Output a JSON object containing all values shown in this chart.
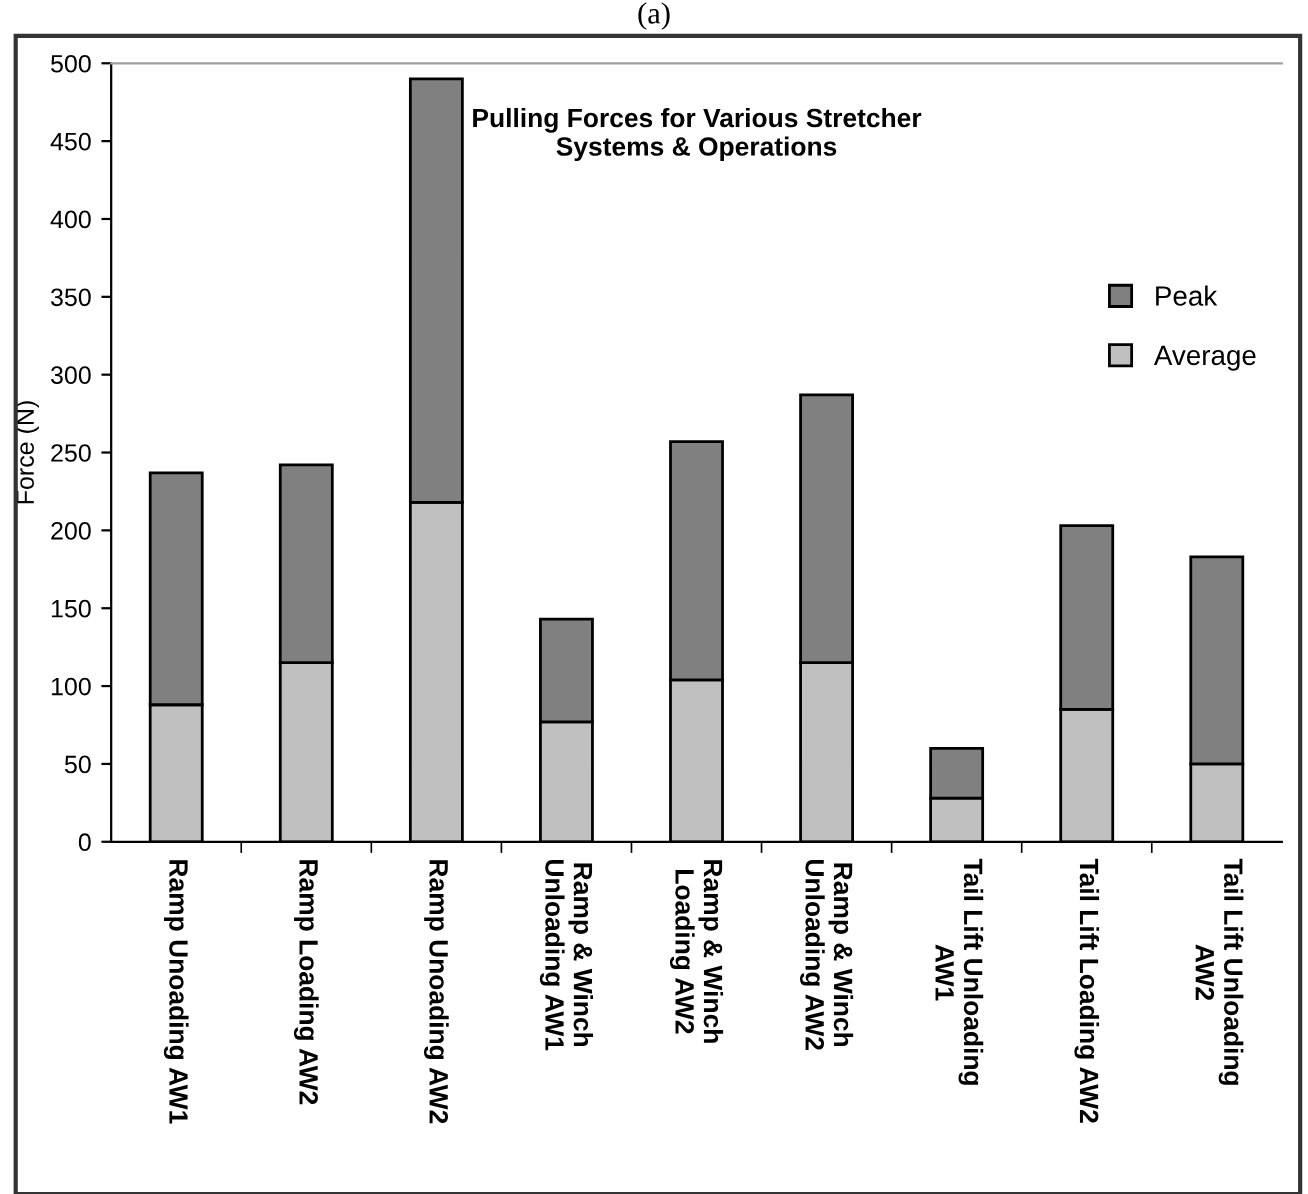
{
  "chart_data": {
    "type": "bar",
    "title": "Pulling Forces for Various Stretcher\nSystems & Operations",
    "ylabel": "Force (N)",
    "annotations": [
      "(a)"
    ],
    "categories": [
      "Ramp Unoading AW1",
      "Ramp Loading AW2",
      "Ramp Unoading AW2",
      "Ramp & Winch\nUnloading AW1",
      "Ramp & Winch\nLoading AW2",
      "Ramp & Winch\nUnloading AW2",
      "Tail Lift Unloading\nAW1",
      "Tail Lift Loading AW2",
      "Tail Lift Unloading\nAW2"
    ],
    "stacked": true,
    "series": [
      {
        "name": "Average",
        "color": "#c0c0c0",
        "values": [
          88,
          115,
          218,
          77,
          104,
          115,
          28,
          85,
          50
        ]
      },
      {
        "name": "Peak",
        "color": "#808080",
        "values": [
          149,
          127,
          272,
          66,
          153,
          172,
          32,
          118,
          133
        ]
      }
    ],
    "ylim": [
      0,
      500
    ],
    "yticks": [
      0,
      50,
      100,
      150,
      200,
      250,
      300,
      350,
      400,
      450,
      500
    ],
    "grid": false,
    "legend": "right"
  }
}
